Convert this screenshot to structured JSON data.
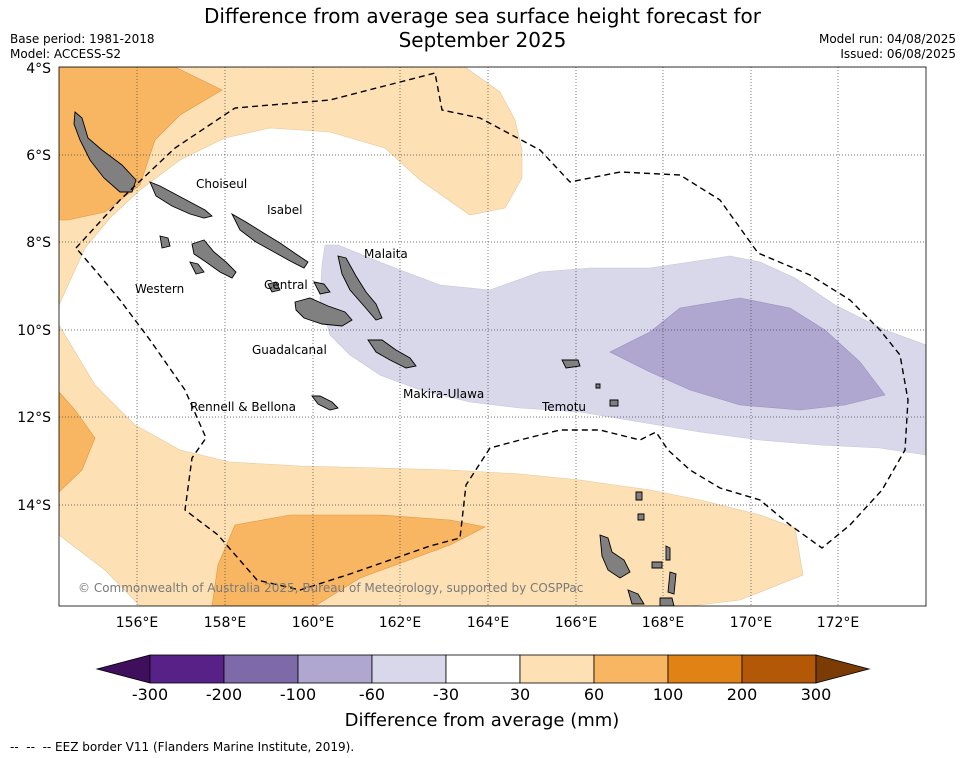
{
  "header": {
    "title_line1": "Difference from average sea surface height forecast for",
    "title_line2": "September 2025",
    "base_period": "Base period: 1981-2018",
    "model": "Model: ACCESS-S2",
    "model_run": "Model run: 04/08/2025",
    "issued": "Issued: 06/08/2025"
  },
  "map": {
    "lat_labels": [
      "4°S",
      "6°S",
      "8°S",
      "10°S",
      "12°S",
      "14°S"
    ],
    "lon_labels": [
      "156°E",
      "158°E",
      "160°E",
      "162°E",
      "164°E",
      "166°E",
      "168°E",
      "170°E",
      "172°E"
    ],
    "regions": [
      "Choiseul",
      "Isabel",
      "Malaita",
      "Western",
      "Central",
      "Guadalcanal",
      "Makira-Ulawa",
      "Rennell & Bellona",
      "Temotu"
    ],
    "copyright": "© Commonwealth of Australia 2025, Bureau of Meteorology, supported by COSPPac"
  },
  "colorbar": {
    "ticks": [
      "-300",
      "-200",
      "-100",
      "-60",
      "-30",
      "30",
      "60",
      "100",
      "200",
      "300"
    ],
    "colors": [
      "#3f0f5e",
      "#582188",
      "#7e6aa9",
      "#afa7cf",
      "#d8d8ea",
      "#ffffff",
      "#fde0b3",
      "#f9b662",
      "#e08214",
      "#b25806",
      "#7a3c04"
    ],
    "label": "Difference from average (mm)"
  },
  "footer": {
    "eez_note": "--  --  -- EEZ border V11 (Flanders Marine Institute, 2019)."
  }
}
